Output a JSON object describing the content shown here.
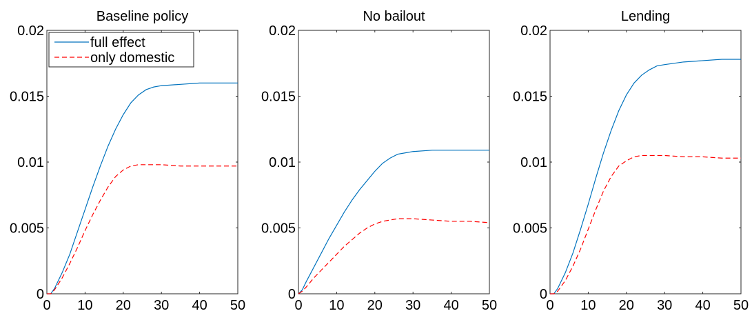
{
  "chart_data": [
    {
      "type": "line",
      "title": "Baseline policy",
      "legend": "upper left",
      "x": [
        0,
        1,
        2,
        4,
        6,
        8,
        10,
        12,
        14,
        16,
        18,
        20,
        22,
        24,
        26,
        28,
        30,
        35,
        40,
        45,
        50
      ],
      "series": [
        {
          "name": "full effect",
          "color": "#0072bd",
          "dash": false,
          "values": [
            0,
            0,
            0.0004,
            0.0016,
            0.003,
            0.0047,
            0.0064,
            0.0081,
            0.0097,
            0.0112,
            0.0125,
            0.0136,
            0.0145,
            0.0151,
            0.0155,
            0.0157,
            0.0158,
            0.0159,
            0.016,
            0.016,
            0.016
          ]
        },
        {
          "name": "only domestic",
          "color": "#ff0000",
          "dash": true,
          "values": [
            0,
            0,
            0.0003,
            0.0012,
            0.0023,
            0.0035,
            0.0048,
            0.006,
            0.0071,
            0.0081,
            0.0089,
            0.0094,
            0.0097,
            0.0098,
            0.0098,
            0.0098,
            0.0098,
            0.0097,
            0.0097,
            0.0097,
            0.0097
          ]
        }
      ],
      "xlim": [
        0,
        50
      ],
      "xticks": [
        0,
        10,
        20,
        30,
        40,
        50
      ],
      "ylim": [
        0,
        0.02
      ],
      "yticks": [
        0,
        0.005,
        0.01,
        0.015,
        0.02
      ]
    },
    {
      "type": "line",
      "title": "No bailout",
      "x": [
        0,
        1,
        2,
        4,
        6,
        8,
        10,
        12,
        14,
        16,
        18,
        20,
        22,
        24,
        26,
        28,
        30,
        35,
        40,
        45,
        50
      ],
      "series": [
        {
          "color": "#0072bd",
          "dash": false,
          "values": [
            0,
            0.0003,
            0.0009,
            0.002,
            0.0031,
            0.0042,
            0.0052,
            0.0062,
            0.0071,
            0.0079,
            0.0086,
            0.0093,
            0.0099,
            0.0103,
            0.0106,
            0.0107,
            0.0108,
            0.0109,
            0.0109,
            0.0109,
            0.0109
          ]
        },
        {
          "color": "#ff0000",
          "dash": true,
          "values": [
            0,
            0.0002,
            0.0005,
            0.0012,
            0.0018,
            0.0024,
            0.003,
            0.0036,
            0.0041,
            0.0046,
            0.005,
            0.0053,
            0.0055,
            0.0056,
            0.0057,
            0.0057,
            0.0057,
            0.0056,
            0.0055,
            0.0055,
            0.0054
          ]
        }
      ],
      "xlim": [
        0,
        50
      ],
      "xticks": [
        0,
        10,
        20,
        30,
        40,
        50
      ],
      "ylim": [
        0,
        0.02
      ],
      "yticks": [
        0,
        0.005,
        0.01,
        0.015,
        0.02
      ]
    },
    {
      "type": "line",
      "title": "Lending",
      "x": [
        0,
        1,
        2,
        4,
        6,
        8,
        10,
        12,
        14,
        16,
        18,
        20,
        22,
        24,
        26,
        28,
        30,
        35,
        40,
        45,
        50
      ],
      "series": [
        {
          "color": "#0072bd",
          "dash": false,
          "values": [
            0,
            0,
            0.0004,
            0.0016,
            0.0031,
            0.0049,
            0.0068,
            0.0088,
            0.0107,
            0.0124,
            0.0139,
            0.0151,
            0.016,
            0.0166,
            0.017,
            0.0173,
            0.0174,
            0.0176,
            0.0177,
            0.0178,
            0.0178
          ]
        },
        {
          "color": "#ff0000",
          "dash": true,
          "values": [
            0,
            0,
            0.0002,
            0.001,
            0.0021,
            0.0034,
            0.0049,
            0.0064,
            0.0078,
            0.0089,
            0.0097,
            0.0101,
            0.0104,
            0.0105,
            0.0105,
            0.0105,
            0.0105,
            0.0104,
            0.0104,
            0.0103,
            0.0103
          ]
        }
      ],
      "xlim": [
        0,
        50
      ],
      "xticks": [
        0,
        10,
        20,
        30,
        40,
        50
      ],
      "ylim": [
        0,
        0.02
      ],
      "yticks": [
        0,
        0.005,
        0.01,
        0.015,
        0.02
      ]
    }
  ]
}
